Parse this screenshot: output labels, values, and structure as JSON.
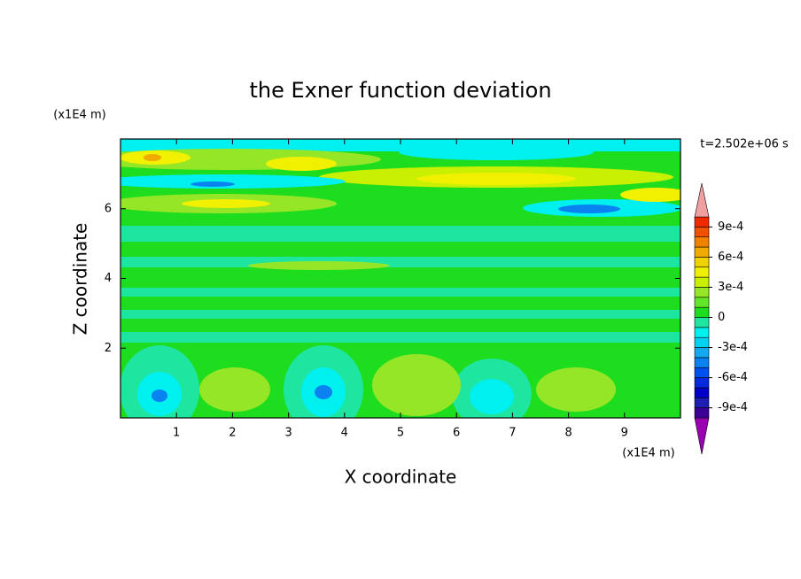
{
  "chart_data": {
    "type": "contour",
    "title": "the Exner function deviation",
    "x_label": "X coordinate",
    "y_label": "Z coordinate",
    "x_unit": "(x1E4 m)",
    "y_unit": "(x1E4 m)",
    "time_label": "t=2.502e+06 s",
    "xlim": [
      0,
      10
    ],
    "xticks": [
      1,
      2,
      3,
      4,
      5,
      6,
      7,
      8,
      9
    ],
    "ylim": [
      0,
      8
    ],
    "yticks": [
      2,
      4,
      6
    ],
    "colorbar": {
      "levels": [
        -0.001,
        -0.0009,
        -0.0008,
        -0.0007,
        -0.0006,
        -0.0005,
        -0.0004,
        -0.0003,
        -0.0002,
        -0.0001,
        0,
        0.0001,
        0.0002,
        0.0003,
        0.0004,
        0.0005,
        0.0006,
        0.0007,
        0.0008,
        0.0009,
        0.001
      ],
      "colors": [
        "#9a00b0",
        "#3c0096",
        "#1e1eb4",
        "#0000c8",
        "#0028dc",
        "#0050f0",
        "#0a82f0",
        "#14a8f0",
        "#00d2f0",
        "#00f0f0",
        "#1ee6a0",
        "#1edc1e",
        "#64e628",
        "#96e628",
        "#c8f000",
        "#f0f000",
        "#f0d200",
        "#f0aa00",
        "#f08200",
        "#f05000",
        "#f02800",
        "#f0a0a0"
      ],
      "ticks": [
        {
          "value": 0.0009,
          "label": "9e-4"
        },
        {
          "value": 0.0006,
          "label": "6e-4"
        },
        {
          "value": 0.0003,
          "label": "3e-4"
        },
        0,
        {
          "value": -0.0003,
          "label": "-3e-4"
        },
        {
          "value": -0.0006,
          "label": "-6e-4"
        },
        {
          "value": -0.0009,
          "label": "-9e-4"
        }
      ]
    }
  }
}
